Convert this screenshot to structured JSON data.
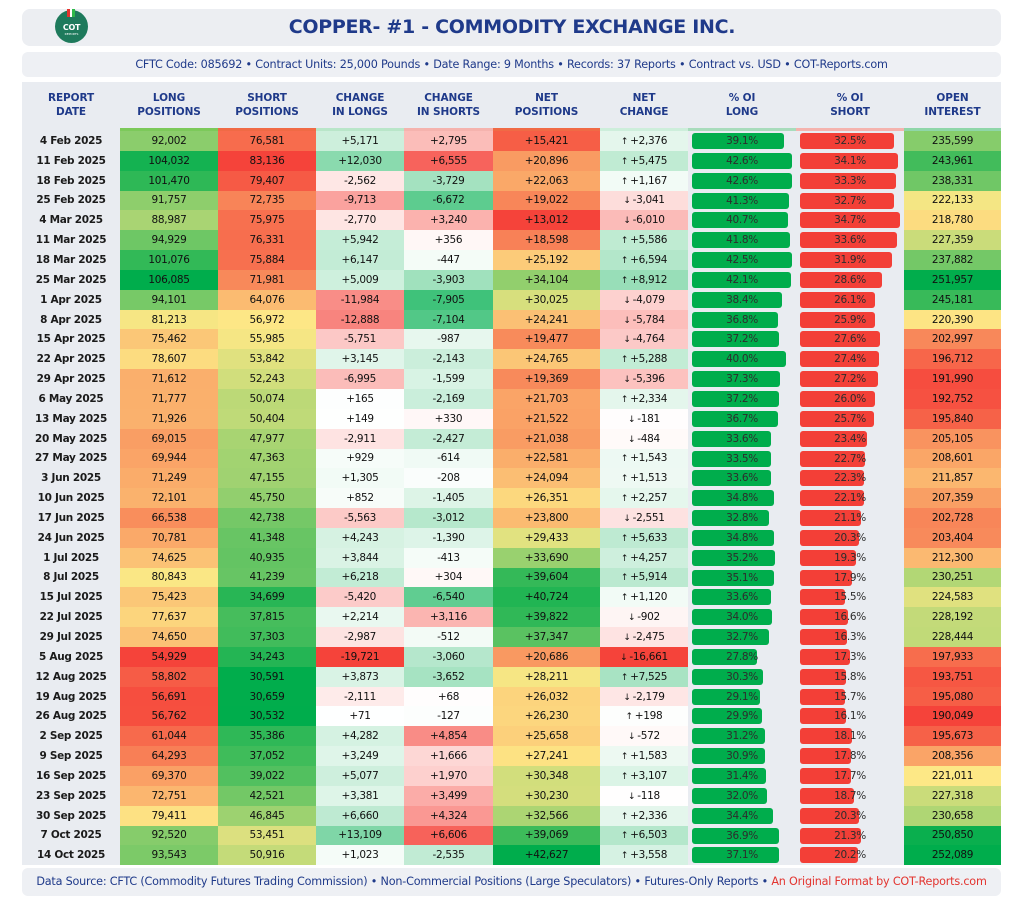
{
  "header": {
    "logo": {
      "text": "COT",
      "subtext": "REPORTS",
      "icon": "cot-reports-logo-icon"
    },
    "title": "COPPER- #1 - COMMODITY EXCHANGE INC.",
    "subtitle": "CFTC Code: 085692 • Contract Units: 25,000 Pounds • Date Range: 9 Months • Records: 37 Reports • Contract vs. USD • COT-Reports.com"
  },
  "colors": {
    "green": "#00ad4c",
    "red": "#f33f37",
    "title": "#1f3a8a",
    "brand_red": "#e3342f"
  },
  "columns": [
    {
      "key": "date",
      "line1": "REPORT",
      "line2": "DATE"
    },
    {
      "key": "long",
      "line1": "LONG",
      "line2": "POSITIONS"
    },
    {
      "key": "short",
      "line1": "SHORT",
      "line2": "POSITIONS"
    },
    {
      "key": "chg_long",
      "line1": "CHANGE",
      "line2": "IN LONGS"
    },
    {
      "key": "chg_short",
      "line1": "CHANGE",
      "line2": "IN SHORTS"
    },
    {
      "key": "net",
      "line1": "NET",
      "line2": "POSITIONS"
    },
    {
      "key": "net_chg",
      "line1": "NET",
      "line2": "CHANGE"
    },
    {
      "key": "pct_long",
      "line1": "% OI",
      "line2": "LONG"
    },
    {
      "key": "pct_short",
      "line1": "% OI",
      "line2": "SHORT"
    },
    {
      "key": "oi",
      "line1": "OPEN",
      "line2": "INTEREST"
    }
  ],
  "rows": [
    {
      "date": "4 Feb 2025",
      "long": "92,002",
      "short": "76,581",
      "chg_long": "+5,171",
      "chg_short": "+2,795",
      "net": "+15,421",
      "net_chg": "+2,376",
      "pct_long": "39.1%",
      "pct_short": "32.5%",
      "oi": "235,599"
    },
    {
      "date": "11 Feb 2025",
      "long": "104,032",
      "short": "83,136",
      "chg_long": "+12,030",
      "chg_short": "+6,555",
      "net": "+20,896",
      "net_chg": "+5,475",
      "pct_long": "42.6%",
      "pct_short": "34.1%",
      "oi": "243,961"
    },
    {
      "date": "18 Feb 2025",
      "long": "101,470",
      "short": "79,407",
      "chg_long": "-2,562",
      "chg_short": "-3,729",
      "net": "+22,063",
      "net_chg": "+1,167",
      "pct_long": "42.6%",
      "pct_short": "33.3%",
      "oi": "238,331"
    },
    {
      "date": "25 Feb 2025",
      "long": "91,757",
      "short": "72,735",
      "chg_long": "-9,713",
      "chg_short": "-6,672",
      "net": "+19,022",
      "net_chg": "-3,041",
      "pct_long": "41.3%",
      "pct_short": "32.7%",
      "oi": "222,133"
    },
    {
      "date": "4 Mar 2025",
      "long": "88,987",
      "short": "75,975",
      "chg_long": "-2,770",
      "chg_short": "+3,240",
      "net": "+13,012",
      "net_chg": "-6,010",
      "pct_long": "40.7%",
      "pct_short": "34.7%",
      "oi": "218,780"
    },
    {
      "date": "11 Mar 2025",
      "long": "94,929",
      "short": "76,331",
      "chg_long": "+5,942",
      "chg_short": "+356",
      "net": "+18,598",
      "net_chg": "+5,586",
      "pct_long": "41.8%",
      "pct_short": "33.6%",
      "oi": "227,359"
    },
    {
      "date": "18 Mar 2025",
      "long": "101,076",
      "short": "75,884",
      "chg_long": "+6,147",
      "chg_short": "-447",
      "net": "+25,192",
      "net_chg": "+6,594",
      "pct_long": "42.5%",
      "pct_short": "31.9%",
      "oi": "237,882"
    },
    {
      "date": "25 Mar 2025",
      "long": "106,085",
      "short": "71,981",
      "chg_long": "+5,009",
      "chg_short": "-3,903",
      "net": "+34,104",
      "net_chg": "+8,912",
      "pct_long": "42.1%",
      "pct_short": "28.6%",
      "oi": "251,957"
    },
    {
      "date": "1 Apr 2025",
      "long": "94,101",
      "short": "64,076",
      "chg_long": "-11,984",
      "chg_short": "-7,905",
      "net": "+30,025",
      "net_chg": "-4,079",
      "pct_long": "38.4%",
      "pct_short": "26.1%",
      "oi": "245,181"
    },
    {
      "date": "8 Apr 2025",
      "long": "81,213",
      "short": "56,972",
      "chg_long": "-12,888",
      "chg_short": "-7,104",
      "net": "+24,241",
      "net_chg": "-5,784",
      "pct_long": "36.8%",
      "pct_short": "25.9%",
      "oi": "220,390"
    },
    {
      "date": "15 Apr 2025",
      "long": "75,462",
      "short": "55,985",
      "chg_long": "-5,751",
      "chg_short": "-987",
      "net": "+19,477",
      "net_chg": "-4,764",
      "pct_long": "37.2%",
      "pct_short": "27.6%",
      "oi": "202,997"
    },
    {
      "date": "22 Apr 2025",
      "long": "78,607",
      "short": "53,842",
      "chg_long": "+3,145",
      "chg_short": "-2,143",
      "net": "+24,765",
      "net_chg": "+5,288",
      "pct_long": "40.0%",
      "pct_short": "27.4%",
      "oi": "196,712"
    },
    {
      "date": "29 Apr 2025",
      "long": "71,612",
      "short": "52,243",
      "chg_long": "-6,995",
      "chg_short": "-1,599",
      "net": "+19,369",
      "net_chg": "-5,396",
      "pct_long": "37.3%",
      "pct_short": "27.2%",
      "oi": "191,990"
    },
    {
      "date": "6 May 2025",
      "long": "71,777",
      "short": "50,074",
      "chg_long": "+165",
      "chg_short": "-2,169",
      "net": "+21,703",
      "net_chg": "+2,334",
      "pct_long": "37.2%",
      "pct_short": "26.0%",
      "oi": "192,752"
    },
    {
      "date": "13 May 2025",
      "long": "71,926",
      "short": "50,404",
      "chg_long": "+149",
      "chg_short": "+330",
      "net": "+21,522",
      "net_chg": "-181",
      "pct_long": "36.7%",
      "pct_short": "25.7%",
      "oi": "195,840"
    },
    {
      "date": "20 May 2025",
      "long": "69,015",
      "short": "47,977",
      "chg_long": "-2,911",
      "chg_short": "-2,427",
      "net": "+21,038",
      "net_chg": "-484",
      "pct_long": "33.6%",
      "pct_short": "23.4%",
      "oi": "205,105"
    },
    {
      "date": "27 May 2025",
      "long": "69,944",
      "short": "47,363",
      "chg_long": "+929",
      "chg_short": "-614",
      "net": "+22,581",
      "net_chg": "+1,543",
      "pct_long": "33.5%",
      "pct_short": "22.7%",
      "oi": "208,601"
    },
    {
      "date": "3 Jun 2025",
      "long": "71,249",
      "short": "47,155",
      "chg_long": "+1,305",
      "chg_short": "-208",
      "net": "+24,094",
      "net_chg": "+1,513",
      "pct_long": "33.6%",
      "pct_short": "22.3%",
      "oi": "211,857"
    },
    {
      "date": "10 Jun 2025",
      "long": "72,101",
      "short": "45,750",
      "chg_long": "+852",
      "chg_short": "-1,405",
      "net": "+26,351",
      "net_chg": "+2,257",
      "pct_long": "34.8%",
      "pct_short": "22.1%",
      "oi": "207,359"
    },
    {
      "date": "17 Jun 2025",
      "long": "66,538",
      "short": "42,738",
      "chg_long": "-5,563",
      "chg_short": "-3,012",
      "net": "+23,800",
      "net_chg": "-2,551",
      "pct_long": "32.8%",
      "pct_short": "21.1%",
      "oi": "202,728"
    },
    {
      "date": "24 Jun 2025",
      "long": "70,781",
      "short": "41,348",
      "chg_long": "+4,243",
      "chg_short": "-1,390",
      "net": "+29,433",
      "net_chg": "+5,633",
      "pct_long": "34.8%",
      "pct_short": "20.3%",
      "oi": "203,404"
    },
    {
      "date": "1 Jul 2025",
      "long": "74,625",
      "short": "40,935",
      "chg_long": "+3,844",
      "chg_short": "-413",
      "net": "+33,690",
      "net_chg": "+4,257",
      "pct_long": "35.2%",
      "pct_short": "19.3%",
      "oi": "212,300"
    },
    {
      "date": "8 Jul 2025",
      "long": "80,843",
      "short": "41,239",
      "chg_long": "+6,218",
      "chg_short": "+304",
      "net": "+39,604",
      "net_chg": "+5,914",
      "pct_long": "35.1%",
      "pct_short": "17.9%",
      "oi": "230,251"
    },
    {
      "date": "15 Jul 2025",
      "long": "75,423",
      "short": "34,699",
      "chg_long": "-5,420",
      "chg_short": "-6,540",
      "net": "+40,724",
      "net_chg": "+1,120",
      "pct_long": "33.6%",
      "pct_short": "15.5%",
      "oi": "224,583"
    },
    {
      "date": "22 Jul 2025",
      "long": "77,637",
      "short": "37,815",
      "chg_long": "+2,214",
      "chg_short": "+3,116",
      "net": "+39,822",
      "net_chg": "-902",
      "pct_long": "34.0%",
      "pct_short": "16.6%",
      "oi": "228,192"
    },
    {
      "date": "29 Jul 2025",
      "long": "74,650",
      "short": "37,303",
      "chg_long": "-2,987",
      "chg_short": "-512",
      "net": "+37,347",
      "net_chg": "-2,475",
      "pct_long": "32.7%",
      "pct_short": "16.3%",
      "oi": "228,444"
    },
    {
      "date": "5 Aug 2025",
      "long": "54,929",
      "short": "34,243",
      "chg_long": "-19,721",
      "chg_short": "-3,060",
      "net": "+20,686",
      "net_chg": "-16,661",
      "pct_long": "27.8%",
      "pct_short": "17.3%",
      "oi": "197,933"
    },
    {
      "date": "12 Aug 2025",
      "long": "58,802",
      "short": "30,591",
      "chg_long": "+3,873",
      "chg_short": "-3,652",
      "net": "+28,211",
      "net_chg": "+7,525",
      "pct_long": "30.3%",
      "pct_short": "15.8%",
      "oi": "193,751"
    },
    {
      "date": "19 Aug 2025",
      "long": "56,691",
      "short": "30,659",
      "chg_long": "-2,111",
      "chg_short": "+68",
      "net": "+26,032",
      "net_chg": "-2,179",
      "pct_long": "29.1%",
      "pct_short": "15.7%",
      "oi": "195,080"
    },
    {
      "date": "26 Aug 2025",
      "long": "56,762",
      "short": "30,532",
      "chg_long": "+71",
      "chg_short": "-127",
      "net": "+26,230",
      "net_chg": "+198",
      "pct_long": "29.9%",
      "pct_short": "16.1%",
      "oi": "190,049"
    },
    {
      "date": "2 Sep 2025",
      "long": "61,044",
      "short": "35,386",
      "chg_long": "+4,282",
      "chg_short": "+4,854",
      "net": "+25,658",
      "net_chg": "-572",
      "pct_long": "31.2%",
      "pct_short": "18.1%",
      "oi": "195,673"
    },
    {
      "date": "9 Sep 2025",
      "long": "64,293",
      "short": "37,052",
      "chg_long": "+3,249",
      "chg_short": "+1,666",
      "net": "+27,241",
      "net_chg": "+1,583",
      "pct_long": "30.9%",
      "pct_short": "17.8%",
      "oi": "208,356"
    },
    {
      "date": "16 Sep 2025",
      "long": "69,370",
      "short": "39,022",
      "chg_long": "+5,077",
      "chg_short": "+1,970",
      "net": "+30,348",
      "net_chg": "+3,107",
      "pct_long": "31.4%",
      "pct_short": "17.7%",
      "oi": "221,011"
    },
    {
      "date": "23 Sep 2025",
      "long": "72,751",
      "short": "42,521",
      "chg_long": "+3,381",
      "chg_short": "+3,499",
      "net": "+30,230",
      "net_chg": "-118",
      "pct_long": "32.0%",
      "pct_short": "18.7%",
      "oi": "227,318"
    },
    {
      "date": "30 Sep 2025",
      "long": "79,411",
      "short": "46,845",
      "chg_long": "+6,660",
      "chg_short": "+4,324",
      "net": "+32,566",
      "net_chg": "+2,336",
      "pct_long": "34.4%",
      "pct_short": "20.3%",
      "oi": "230,658"
    },
    {
      "date": "7 Oct 2025",
      "long": "92,520",
      "short": "53,451",
      "chg_long": "+13,109",
      "chg_short": "+6,606",
      "net": "+39,069",
      "net_chg": "+6,503",
      "pct_long": "36.9%",
      "pct_short": "21.3%",
      "oi": "250,850"
    },
    {
      "date": "14 Oct 2025",
      "long": "93,543",
      "short": "50,916",
      "chg_long": "+1,023",
      "chg_short": "-2,535",
      "net": "+42,627",
      "net_chg": "+3,558",
      "pct_long": "37.1%",
      "pct_short": "20.2%",
      "oi": "252,089"
    }
  ],
  "icons": {
    "up": "↑",
    "down": "↓"
  },
  "footer": {
    "source": "Data Source: CFTC (Commodity Futures Trading Commission) • Non-Commercial Positions (Large Speculators) • Futures-Only Reports • ",
    "brand": "An Original Format by COT-Reports.com"
  }
}
